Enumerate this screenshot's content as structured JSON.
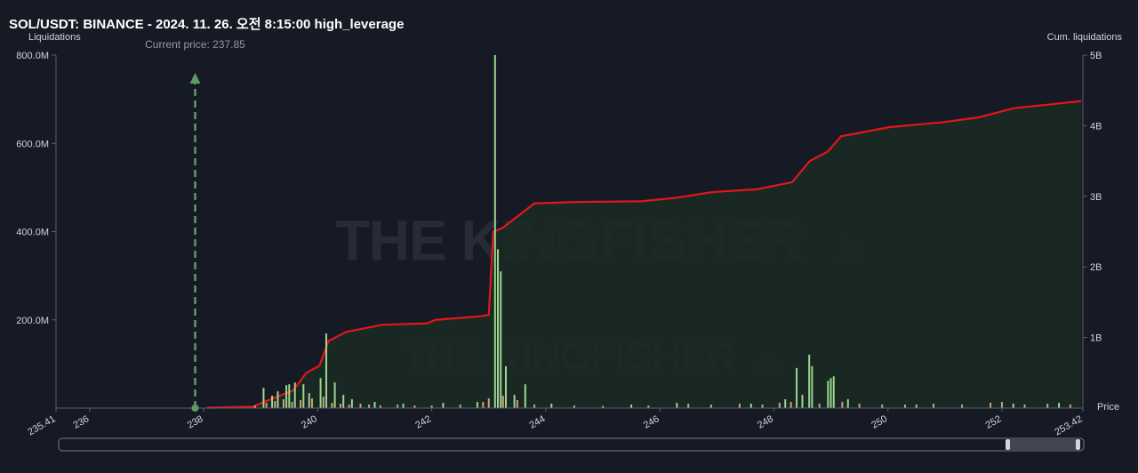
{
  "chart_data": {
    "type": "bar",
    "title": "SOL/USDT: BINANCE - 2024. 11. 26. 오전 8:15:00 high_leverage",
    "y_label": "Liquidations",
    "y2_label": "Cum. liquidations",
    "x_label": "Price",
    "watermark": "THE KINGFISHER",
    "watermark_suffix": ".io",
    "annotation": {
      "text": "Current price: 237.85",
      "x": 237.85,
      "color": "#5e9a66"
    },
    "xlim": [
      235.41,
      253.42
    ],
    "xticks": [
      235.41,
      236,
      238,
      240,
      242,
      244,
      246,
      248,
      250,
      252,
      253.42
    ],
    "ylim": [
      0,
      800000000
    ],
    "yticks": [
      {
        "value": 200000000,
        "label": "200.0M"
      },
      {
        "value": 400000000,
        "label": "400.0M"
      },
      {
        "value": 600000000,
        "label": "600.0M"
      },
      {
        "value": 800000000,
        "label": "800.0M"
      }
    ],
    "y2lim": [
      0,
      5000000000
    ],
    "y2ticks": [
      {
        "value": 1000000000,
        "label": "1B"
      },
      {
        "value": 2000000000,
        "label": "2B"
      },
      {
        "value": 3000000000,
        "label": "3B"
      },
      {
        "value": 4000000000,
        "label": "4B"
      },
      {
        "value": 5000000000,
        "label": "5B"
      }
    ],
    "grid": false,
    "series": [
      {
        "type": "bar",
        "color": "#d0a27c",
        "x": [
          238.9,
          239.1,
          239.25,
          239.4,
          239.55,
          239.7,
          239.9,
          240.1,
          240.25,
          240.4,
          240.55,
          240.75,
          240.9,
          241.1,
          241.4,
          241.7,
          242.0,
          242.5,
          242.9,
          243.0,
          243.25,
          243.5,
          243.8,
          244.5,
          245.0,
          245.8,
          246.5,
          246.9,
          247.4,
          247.8,
          248.1,
          248.3,
          248.8,
          249.2,
          249.5,
          249.9,
          250.3,
          250.8,
          251.3,
          251.8,
          252.0,
          252.4,
          252.8,
          253.2
        ],
        "values": [
          6000000,
          12000000,
          16000000,
          20000000,
          14000000,
          18000000,
          22000000,
          26000000,
          12000000,
          10000000,
          8000000,
          10000000,
          8000000,
          6000000,
          8000000,
          6000000,
          6000000,
          8000000,
          14000000,
          22000000,
          28000000,
          18000000,
          8000000,
          6000000,
          5000000,
          6000000,
          10000000,
          8000000,
          10000000,
          8000000,
          12000000,
          14000000,
          10000000,
          14000000,
          10000000,
          8000000,
          8000000,
          10000000,
          8000000,
          12000000,
          14000000,
          8000000,
          10000000,
          8000000
        ]
      },
      {
        "type": "bar",
        "color": "#9bd68f",
        "x": [
          239.05,
          239.2,
          239.3,
          239.45,
          239.5,
          239.6,
          239.75,
          239.85,
          240.05,
          240.15,
          240.3,
          240.45,
          240.6,
          241.0,
          241.5,
          242.2,
          242.8,
          243.11,
          243.16,
          243.21,
          243.3,
          243.45,
          243.64,
          244.1,
          245.5,
          246.3,
          247.6,
          248.2,
          248.4,
          248.5,
          248.62,
          248.67,
          248.95,
          249.0,
          249.05,
          249.3,
          250.5,
          252.2,
          253.0
        ],
        "values": [
          46000000,
          28000000,
          38000000,
          52000000,
          54000000,
          58000000,
          54000000,
          34000000,
          68000000,
          169000000,
          58000000,
          30000000,
          20000000,
          14000000,
          10000000,
          12000000,
          14000000,
          800000000,
          360000000,
          310000000,
          95000000,
          30000000,
          54000000,
          10000000,
          8000000,
          12000000,
          10000000,
          20000000,
          91000000,
          30000000,
          121000000,
          95000000,
          62000000,
          68000000,
          72000000,
          20000000,
          8000000,
          10000000,
          12000000
        ]
      },
      {
        "type": "line",
        "axis": "y2",
        "color": "#e3161b",
        "fill": "#1b2a24",
        "x": [
          238.05,
          238.87,
          239.1,
          239.57,
          239.8,
          240.03,
          240.19,
          240.5,
          241.13,
          241.91,
          242.07,
          242.85,
          243.0,
          243.08,
          243.24,
          243.48,
          243.8,
          244.58,
          245.67,
          246.3,
          246.92,
          247.7,
          248.32,
          248.63,
          248.94,
          249.18,
          250.03,
          250.97,
          251.6,
          252.22,
          252.83,
          253.39
        ],
        "values": [
          5000000,
          20000000,
          100000000,
          250000000,
          500000000,
          600000000,
          950000000,
          1080000000,
          1180000000,
          1200000000,
          1250000000,
          1300000000,
          1320000000,
          2500000000,
          2550000000,
          2700000000,
          2900000000,
          2920000000,
          2930000000,
          2980000000,
          3060000000,
          3100000000,
          3200000000,
          3500000000,
          3630000000,
          3850000000,
          3980000000,
          4050000000,
          4120000000,
          4250000000,
          4300000000,
          4350000000
        ]
      }
    ]
  }
}
